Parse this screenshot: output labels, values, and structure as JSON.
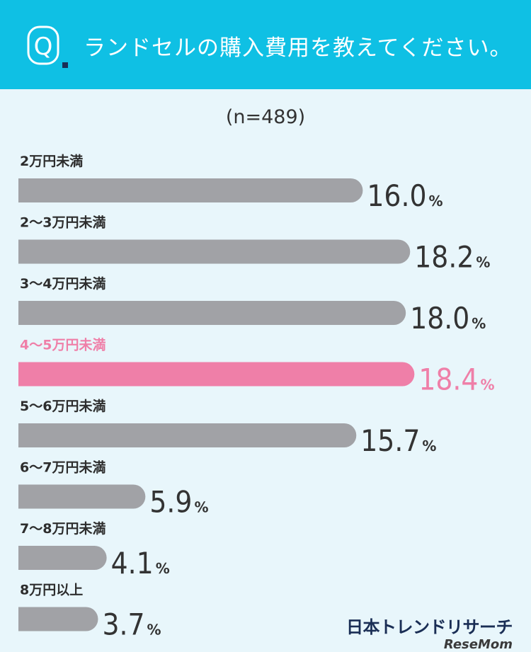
{
  "header": {
    "question": "ランドセルの購入費用を教えてください。",
    "q_letter": "Q"
  },
  "sample_size": "(n=489)",
  "chart_data": {
    "type": "bar",
    "orientation": "horizontal",
    "categories": [
      "2万円未満",
      "2〜3万円未満",
      "3〜4万円未満",
      "4〜5万円未満",
      "5〜6万円未満",
      "6〜7万円未満",
      "7〜8万円未満",
      "8万円以上"
    ],
    "values": [
      16.0,
      18.2,
      18.0,
      18.4,
      15.7,
      5.9,
      4.1,
      3.7
    ],
    "value_labels": [
      "16.0",
      "18.2",
      "18.0",
      "18.4",
      "15.7",
      "5.9",
      "4.1",
      "3.7"
    ],
    "unit": "%",
    "highlight_index": 3,
    "colors": {
      "bar": "#a1a2a6",
      "highlight": "#ef7fa8",
      "header": "#0fc0e4",
      "background": "#e8f6fb"
    },
    "grid": false
  },
  "brand": {
    "name": "日本トレンドリサーチ",
    "sub": "ReseMom"
  }
}
